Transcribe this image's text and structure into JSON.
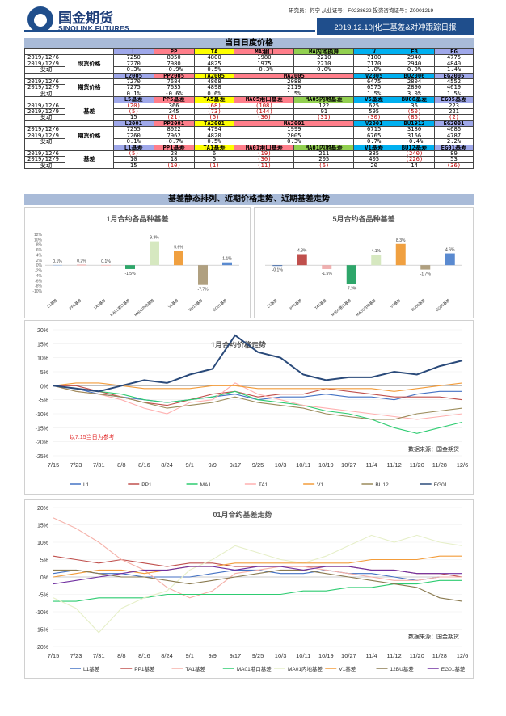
{
  "header": {
    "logo_cn": "国金期货",
    "logo_en": "SINOLINK FUTURES",
    "meta": "研究员：何宁   从业证号：F0238622   投资咨询证号：Z0001219",
    "title": "2019.12.10|化工基差&对冲跟踪日报"
  },
  "sections": {
    "table_title": "当日日度价格",
    "charts_title": "基差静态排列、近期价格走势、近期基差走势"
  },
  "colors": {
    "brand": "#1f4e8c",
    "section": "#a9bbd8",
    "pink": "#ff7e8a",
    "yellow": "#ffff00",
    "sky": "#00b0f0",
    "green": "#92d050",
    "lavender": "#9fa8ea",
    "peach": "#ffc09f",
    "red_text": "#c00000"
  },
  "table": {
    "blocks": [
      {
        "label": "现货价格",
        "header": [
          "",
          "",
          "L",
          "PP",
          "TA",
          "MA港口",
          "MA内地换算",
          "V",
          "EB",
          "EG"
        ],
        "rows": [
          [
            "2019/12/6",
            "7250",
            "8050",
            "4800",
            "1980",
            "2210",
            "7100",
            "2940",
            "4775"
          ],
          [
            "2019/12/9",
            "7270",
            "7980",
            "4825",
            "1975",
            "2210",
            "7170",
            "2940",
            "4840"
          ],
          [
            "变动",
            "0.3%",
            "-0.9%",
            "0.5%",
            "-0.3%",
            "0.0%",
            "1.0%",
            "0.0%",
            "1.4%"
          ]
        ]
      },
      {
        "label": "期货价格",
        "header": [
          "",
          "",
          "L2005",
          "PP2005",
          "TA2005",
          "MA2005",
          "",
          "V2005",
          "BU2006",
          "EG2005"
        ],
        "rows": [
          [
            "2019/12/6",
            "7270",
            "7684",
            "4868",
            "2088",
            "",
            "6475",
            "2804",
            "4552"
          ],
          [
            "2019/12/9",
            "7275",
            "7635",
            "4898",
            "2119",
            "",
            "6575",
            "2890",
            "4619"
          ],
          [
            "变动",
            "0.1%",
            "-0.6%",
            "0.6%",
            "1.5%",
            "",
            "1.5%",
            "3.0%",
            "1.5%"
          ]
        ]
      },
      {
        "label": "基差",
        "header": [
          "",
          "",
          "L5基差",
          "PP5基差",
          "TA5基差",
          "MA05港口基差",
          "MA05内地基差",
          "V5基差",
          "BU06基差",
          "EG05基差"
        ],
        "rows": [
          [
            "2019/12/6",
            "(20)",
            "366",
            "(68)",
            "(108)",
            "122",
            "625",
            "36",
            "223"
          ],
          [
            "2019/12/9",
            "(5)",
            "345",
            "(73)",
            "(144)",
            "91",
            "595",
            "(50)",
            "221"
          ],
          [
            "变动",
            "15",
            "(21)",
            "(5)",
            "(36)",
            "(31)",
            "(30)",
            "(86)",
            "(2)"
          ]
        ]
      },
      {
        "label": "期货价格",
        "header": [
          "",
          "",
          "L2001",
          "PP2001",
          "TA2001",
          "MA2001",
          "",
          "V2001",
          "BU1912",
          "EG2001"
        ],
        "rows": [
          [
            "2019/12/6",
            "7255",
            "8022",
            "4794",
            "1999",
            "",
            "6715",
            "3180",
            "4686"
          ],
          [
            "2019/12/9",
            "7260",
            "7962",
            "4820",
            "2005",
            "",
            "6765",
            "3166",
            "4787"
          ],
          [
            "变动",
            "0.1%",
            "-0.7%",
            "0.5%",
            "0.3%",
            "",
            "0.7%",
            "-0.4%",
            "2.2%"
          ]
        ]
      },
      {
        "label": "基差",
        "header": [
          "",
          "",
          "L1基差",
          "PP1基差",
          "TA1基差",
          "MA01港口基差",
          "MA01内地基差",
          "V1基差",
          "BU12基差",
          "EG01基差"
        ],
        "rows": [
          [
            "2019/12/6",
            "(5)",
            "28",
            "6",
            "(19)",
            "211",
            "385",
            "(240)",
            "89"
          ],
          [
            "2019/12/9",
            "10",
            "18",
            "5",
            "(30)",
            "205",
            "405",
            "(226)",
            "53"
          ],
          [
            "变动",
            "15",
            "(10)",
            "(1)",
            "(11)",
            "(6)",
            "20",
            "14",
            "(36)"
          ]
        ]
      }
    ]
  },
  "chart_data": [
    {
      "type": "bar",
      "title": "1月合约各品种基差",
      "categories": [
        "L1基差",
        "PP1基差",
        "TA1基差",
        "MA01港口基差",
        "MA01内地基差",
        "V1基差",
        "BU12基差",
        "EG01基差"
      ],
      "values": [
        0.1,
        0.2,
        0.1,
        -1.5,
        9.3,
        5.6,
        -7.7,
        1.1
      ],
      "value_labels": [
        "0.1%",
        "0.2%",
        "0.1%",
        "-1.5%",
        "9.3%",
        "5.6%",
        "-7.7%",
        "1.1%"
      ],
      "colors": [
        "#b7c9e2",
        "#e8a0a0",
        "#f0c0c0",
        "#2ea66a",
        "#d6e8c0",
        "#f0a040",
        "#b0a080",
        "#5a8ad0"
      ],
      "ylim": [
        -10,
        12
      ],
      "yticks": [
        "12%",
        "10%",
        "8%",
        "6%",
        "4%",
        "2%",
        "0%",
        "-2%",
        "-4%",
        "-6%",
        "-8%",
        "-10%"
      ]
    },
    {
      "type": "bar",
      "title": "5月合约各品种基差",
      "categories": [
        "L5基差",
        "PP5基差",
        "TA5基差",
        "MA05港口基差",
        "MA05内地基差",
        "V5基差",
        "BU06基差",
        "EG05基差"
      ],
      "values": [
        -0.1,
        4.3,
        -1.5,
        -7.3,
        4.1,
        8.3,
        -1.7,
        4.6
      ],
      "value_labels": [
        "-0.1%",
        "4.3%",
        "-1.5%",
        "-7.3%",
        "4.1%",
        "8.3%",
        "-1.7%",
        "4.6%"
      ],
      "colors": [
        "#4a72b0",
        "#c0504d",
        "#f0b0b0",
        "#2ea66a",
        "#d6e8c0",
        "#f0a040",
        "#b0a080",
        "#5a8ad0"
      ],
      "ylim": [
        -10,
        12
      ]
    },
    {
      "type": "line",
      "title": "1月合约价格走势",
      "x": [
        "7/15",
        "7/23",
        "7/31",
        "8/8",
        "8/16",
        "8/24",
        "9/1",
        "9/9",
        "9/17",
        "9/25",
        "10/3",
        "10/11",
        "10/19",
        "10/27",
        "11/4",
        "11/12",
        "11/20",
        "11/28",
        "12/6"
      ],
      "yticks": [
        "20%",
        "15%",
        "10%",
        "5%",
        "0%",
        "-5%",
        "-10%",
        "-15%",
        "-20%",
        "-25%"
      ],
      "ylim": [
        -25,
        20
      ],
      "annotation": "以7.15当日为参考",
      "source": "数据来源：国金期货",
      "series": [
        {
          "name": "L1",
          "color": "#4472c4",
          "values": [
            0,
            -1,
            -3,
            -4,
            -5,
            -6,
            -5,
            -4,
            -3,
            -5,
            -4,
            -4,
            -3,
            -4,
            -4,
            -5,
            -3,
            -2,
            -2
          ]
        },
        {
          "name": "PP1",
          "color": "#c0504d",
          "values": [
            0,
            0,
            -2,
            -4,
            -6,
            -7,
            -5,
            -3,
            -2,
            -4,
            -3,
            -3,
            -1,
            -2,
            -3,
            -4,
            -4,
            -4,
            -5
          ]
        },
        {
          "name": "MA1",
          "color": "#2ecc71",
          "values": [
            0,
            -1,
            -2,
            -3,
            -5,
            -6,
            -5,
            -4,
            -2,
            -5,
            -6,
            -7,
            -9,
            -10,
            -12,
            -15,
            -17,
            -15,
            -13
          ]
        },
        {
          "name": "TA1",
          "color": "#ffb0b0",
          "values": [
            0,
            -2,
            -3,
            -5,
            -8,
            -10,
            -6,
            -5,
            1,
            -3,
            -5,
            -7,
            -8,
            -9,
            -10,
            -11,
            -12,
            -11,
            -10
          ]
        },
        {
          "name": "V1",
          "color": "#f39c3a",
          "values": [
            0,
            1,
            1,
            0,
            -1,
            -1,
            -1,
            0,
            0,
            -1,
            -1,
            -1,
            -1,
            -1,
            -1,
            -2,
            -1,
            0,
            1
          ]
        },
        {
          "name": "BU12",
          "color": "#9b8b5a",
          "values": [
            0,
            -2,
            -3,
            -4,
            -6,
            -8,
            -7,
            -6,
            -4,
            -6,
            -7,
            -8,
            -10,
            -11,
            -12,
            -12,
            -10,
            -9,
            -8
          ]
        },
        {
          "name": "EG01",
          "color": "#2a4a7a",
          "values": [
            0,
            -1,
            -2,
            0,
            2,
            1,
            4,
            6,
            18,
            12,
            10,
            4,
            2,
            3,
            3,
            5,
            4,
            7,
            9
          ]
        }
      ]
    },
    {
      "type": "line",
      "title": "01月合约基差走势",
      "x": [
        "7/15",
        "7/23",
        "7/31",
        "8/8",
        "8/16",
        "8/24",
        "9/1",
        "9/9",
        "9/17",
        "9/25",
        "10/3",
        "10/11",
        "10/19",
        "10/27",
        "11/4",
        "11/12",
        "11/20",
        "11/28",
        "12/6"
      ],
      "yticks": [
        "20%",
        "15%",
        "10%",
        "5%",
        "0%",
        "-5%",
        "-10%",
        "-15%",
        "-20%"
      ],
      "ylim": [
        -20,
        20
      ],
      "source": "数据来源：国金期货",
      "series": [
        {
          "name": "L1基差",
          "color": "#4472c4",
          "values": [
            1,
            2,
            1,
            1,
            0,
            0,
            0,
            1,
            2,
            2,
            1,
            1,
            2,
            1,
            1,
            0,
            -1,
            0,
            0
          ]
        },
        {
          "name": "PP1基差",
          "color": "#c0504d",
          "values": [
            6,
            5,
            4,
            5,
            4,
            3,
            4,
            4,
            3,
            3,
            3,
            3,
            3,
            3,
            2,
            2,
            1,
            1,
            0
          ]
        },
        {
          "name": "TA1基差",
          "color": "#f5b0a8",
          "values": [
            17,
            14,
            10,
            5,
            2,
            -3,
            -6,
            -4,
            1,
            2,
            3,
            3,
            2,
            1,
            0,
            -1,
            -1,
            0,
            0
          ]
        },
        {
          "name": "MA01港口基差",
          "color": "#2ecc71",
          "values": [
            -7,
            -7,
            -6,
            -6,
            -6,
            -5,
            -5,
            -5,
            -5,
            -5,
            -5,
            -4,
            -4,
            -3,
            -3,
            -2,
            -2,
            -1,
            -1
          ]
        },
        {
          "name": "MA01内地基差",
          "color": "#e6efc8",
          "values": [
            -6,
            -9,
            -16,
            -9,
            -6,
            -4,
            2,
            5,
            9,
            7,
            5,
            4,
            6,
            9,
            12,
            10,
            12,
            10,
            9
          ]
        },
        {
          "name": "V1基差",
          "color": "#f39c3a",
          "values": [
            0,
            1,
            2,
            2,
            1,
            2,
            3,
            3,
            4,
            4,
            4,
            4,
            4,
            4,
            5,
            5,
            5,
            6,
            6
          ]
        },
        {
          "name": "12BU基差",
          "color": "#8a7a50",
          "values": [
            2,
            2,
            1,
            0,
            0,
            -1,
            -2,
            -1,
            0,
            1,
            2,
            2,
            1,
            0,
            -1,
            -2,
            -3,
            -6,
            -7
          ]
        },
        {
          "name": "EG01基差",
          "color": "#7030a0",
          "values": [
            -2,
            -1,
            0,
            1,
            2,
            2,
            3,
            3,
            2,
            3,
            3,
            2,
            3,
            3,
            2,
            2,
            1,
            1,
            1
          ]
        }
      ]
    }
  ]
}
